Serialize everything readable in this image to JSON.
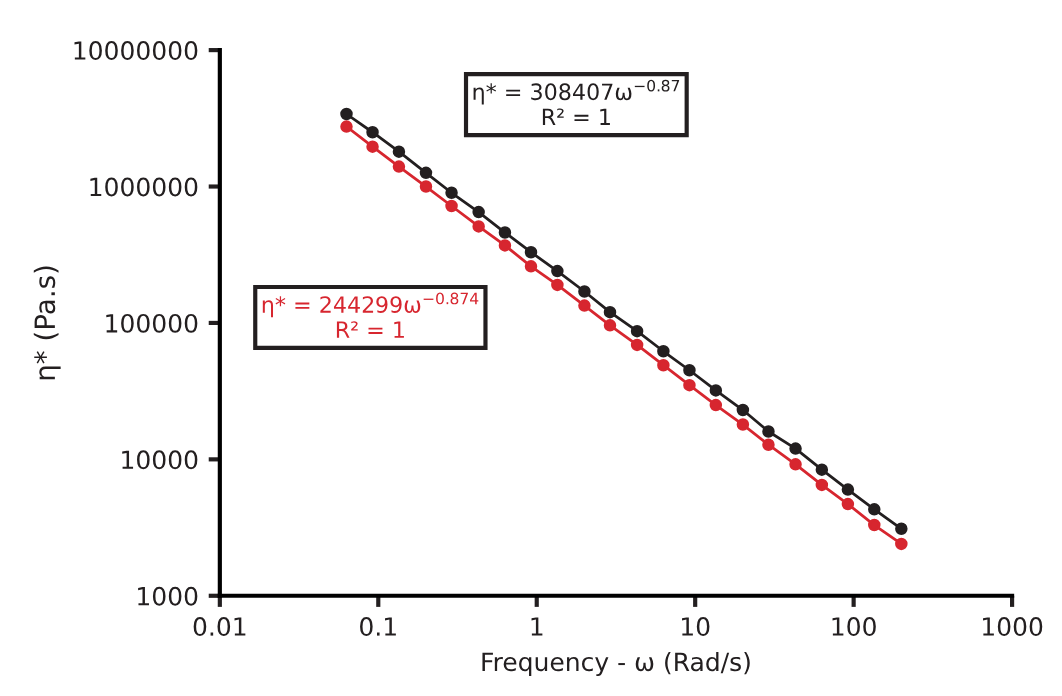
{
  "chart_data": {
    "type": "line",
    "xlabel": "Frequency - ω (Rad/s)",
    "ylabel": "η* (Pa.s)",
    "log": "xy",
    "x": [
      0.063,
      0.092,
      0.135,
      0.2,
      0.29,
      0.43,
      0.63,
      0.92,
      1.35,
      2.0,
      2.9,
      4.3,
      6.3,
      9.2,
      13.5,
      20,
      29,
      43,
      63,
      92,
      135,
      200
    ],
    "series": [
      {
        "color": "#231f20",
        "values": [
          3400000,
          2500000,
          1800000,
          1260000,
          900000,
          650000,
          460000,
          330000,
          240000,
          170000,
          120000,
          87000,
          62000,
          45000,
          32000,
          23000,
          16000,
          12000,
          8400,
          6000,
          4300,
          3100
        ]
      },
      {
        "color": "#d7262f",
        "values": [
          2750000,
          1960000,
          1400000,
          1000000,
          720000,
          510000,
          370000,
          260000,
          190000,
          134000,
          96000,
          69000,
          49000,
          35000,
          25000,
          18000,
          12800,
          9200,
          6500,
          4700,
          3300,
          2400
        ]
      }
    ],
    "xlim": [
      0.01,
      1000
    ],
    "xticks": [
      0.01,
      0.1,
      1,
      10,
      100,
      1000
    ],
    "ylim": [
      1000,
      10000000
    ],
    "yticks": [
      1000,
      10000,
      100000,
      1000000,
      10000000
    ],
    "marker": "circle",
    "line_style": "solid",
    "grid": false,
    "legend": false,
    "annotations": [
      "η* = 308407ω$^{−0.87}$\nR² = 1",
      "η* = 244299ω$^{−0.874}$\nR² = 1"
    ]
  }
}
